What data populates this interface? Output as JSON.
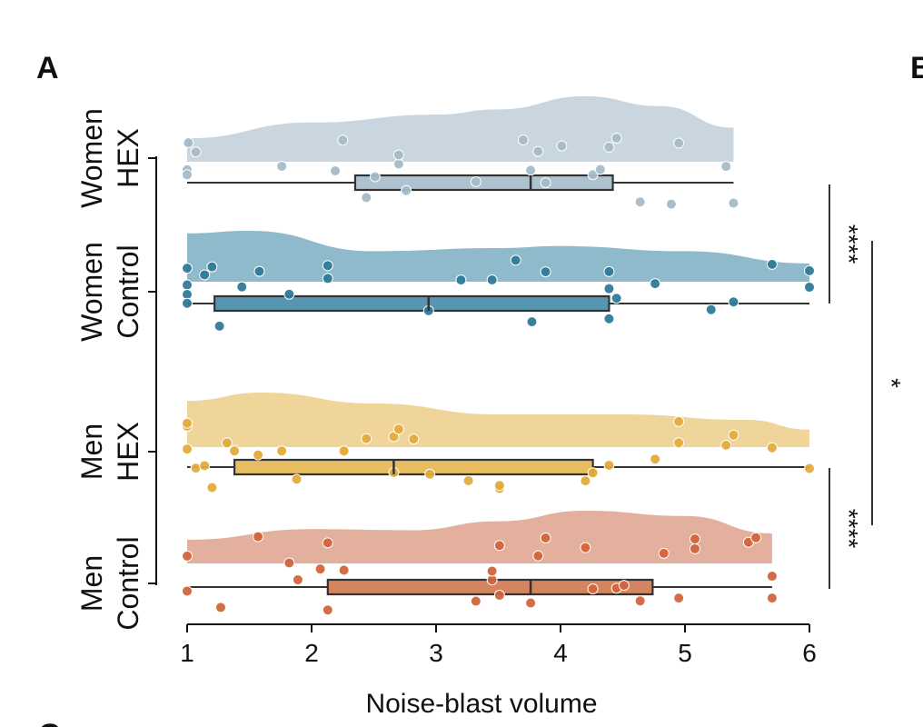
{
  "panel_labels": {
    "a": "A",
    "b": "B",
    "c": "C"
  },
  "chart_data": {
    "type": "raincloud",
    "xlabel": "Noise-blast volume",
    "xlim": [
      1,
      6
    ],
    "xticks": [
      "1",
      "2",
      "3",
      "4",
      "5",
      "6"
    ],
    "groups": [
      {
        "name": "Women HEX",
        "line1": "Women",
        "line2": "HEX",
        "fill": "#c9d6df",
        "point": "#a6bcc8",
        "box": "#aec3ce",
        "box_stats": {
          "min": 1,
          "q1": 2.35,
          "median": 3.76,
          "q3": 4.42,
          "max": 5.39
        },
        "density": {
          "x": [
            1,
            2,
            3,
            3.5,
            4.2,
            4.8,
            5.39
          ],
          "y": [
            0.36,
            0.6,
            0.72,
            0.8,
            1.0,
            0.85,
            0.52
          ]
        },
        "points": [
          1,
          1,
          1.01,
          1.07,
          1.76,
          2.19,
          2.25,
          2.44,
          2.51,
          2.7,
          2.7,
          2.76,
          3.32,
          3.7,
          3.76,
          3.82,
          3.88,
          4.01,
          4.26,
          4.32,
          4.39,
          4.45,
          4.64,
          4.89,
          4.95,
          5.33,
          5.39
        ]
      },
      {
        "name": "Women Control",
        "line1": "Women",
        "line2": "Control",
        "fill": "#8fbacc",
        "point": "#2f7a99",
        "box": "#5895b0",
        "box_stats": {
          "min": 1,
          "q1": 1.22,
          "median": 2.94,
          "q3": 4.39,
          "max": 6
        },
        "density": {
          "x": [
            1,
            1.5,
            2.5,
            3.5,
            4,
            5,
            6
          ],
          "y": [
            0.95,
            1.0,
            0.6,
            0.66,
            0.7,
            0.6,
            0.36
          ]
        },
        "points": [
          1,
          1,
          1,
          1,
          1.14,
          1.2,
          1.26,
          1.44,
          1.58,
          1.82,
          2.13,
          2.13,
          2.94,
          3.2,
          3.45,
          3.64,
          3.77,
          3.88,
          4.39,
          4.39,
          4.39,
          4.45,
          4.76,
          5.21,
          5.39,
          5.7,
          6,
          6
        ]
      },
      {
        "name": "Men HEX",
        "line1": "Men",
        "line2": "HEX",
        "fill": "#f0d59b",
        "point": "#e3ac3c",
        "box": "#e8bd62",
        "box_stats": {
          "min": 1,
          "q1": 1.38,
          "median": 2.66,
          "q3": 4.26,
          "max": 6
        },
        "density": {
          "x": [
            1,
            1.6,
            2.5,
            3.5,
            4.5,
            5.5,
            6
          ],
          "y": [
            0.85,
            1.0,
            0.8,
            0.6,
            0.6,
            0.5,
            0.32
          ]
        },
        "points": [
          1,
          1,
          1,
          1.07,
          1.14,
          1.2,
          1.32,
          1.38,
          1.57,
          1.76,
          1.88,
          2.26,
          2.26,
          2.44,
          2.66,
          2.66,
          2.7,
          2.82,
          2.95,
          3.26,
          3.51,
          3.51,
          4.2,
          4.26,
          4.39,
          4.76,
          4.95,
          4.95,
          5.33,
          5.39,
          5.7,
          6
        ]
      },
      {
        "name": "Men Control",
        "line1": "Men",
        "line2": "Control",
        "fill": "#e2b09c",
        "point": "#d2643c",
        "box": "#d4845f",
        "box_stats": {
          "min": 1,
          "q1": 2.13,
          "median": 3.76,
          "q3": 4.74,
          "max": 5.7
        },
        "density": {
          "x": [
            1,
            2,
            2.8,
            3.5,
            4.2,
            5,
            5.7
          ],
          "y": [
            0.45,
            0.65,
            0.63,
            0.8,
            1.0,
            0.9,
            0.57
          ]
        },
        "points": [
          1,
          1,
          1.27,
          1.57,
          1.82,
          1.89,
          2.07,
          2.13,
          2.13,
          2.26,
          3.32,
          3.45,
          3.45,
          3.51,
          3.51,
          3.76,
          3.82,
          3.88,
          4.2,
          4.26,
          4.45,
          4.51,
          4.64,
          4.83,
          4.95,
          5.08,
          5.08,
          5.51,
          5.57,
          5.7,
          5.7
        ]
      }
    ],
    "significance": [
      {
        "between": [
          "Women HEX",
          "Women Control"
        ],
        "label": "****"
      },
      {
        "between": [
          "Men HEX",
          "Men Control"
        ],
        "label": "****"
      },
      {
        "between": [
          "Women Control",
          "Men HEX"
        ],
        "label": "*"
      }
    ]
  }
}
